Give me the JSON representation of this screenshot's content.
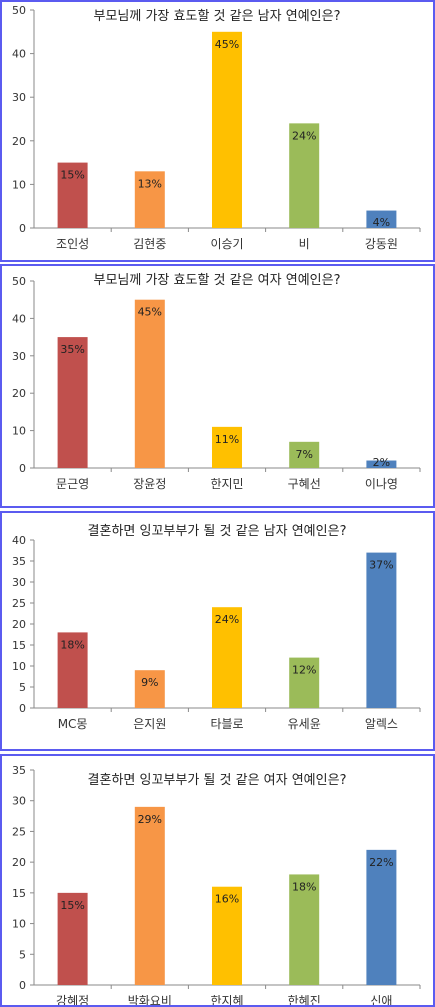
{
  "palette": [
    "#c0504d",
    "#f79646",
    "#ffc000",
    "#9bbb59",
    "#4f81bd"
  ],
  "chart_data": [
    {
      "type": "bar",
      "title": "부모님께 가장 효도할 것 같은 남자 연예인은?",
      "categories": [
        "조인성",
        "김현중",
        "이승기",
        "비",
        "강동원"
      ],
      "values": [
        15,
        13,
        45,
        24,
        4
      ],
      "data_labels": [
        "15%",
        "13%",
        "45%",
        "24%",
        "4%"
      ],
      "ylim": [
        0,
        50
      ],
      "yticks": [
        0,
        10,
        20,
        30,
        40,
        50
      ],
      "ytick_labels": [
        "0",
        "10",
        "20",
        "30",
        "40",
        "50"
      ]
    },
    {
      "type": "bar",
      "title": "부모님께 가장 효도할 것 같은 여자 연예인은?",
      "categories": [
        "문근영",
        "장윤정",
        "한지민",
        "구혜선",
        "이나영"
      ],
      "values": [
        35,
        45,
        11,
        7,
        2
      ],
      "data_labels": [
        "35%",
        "45%",
        "11%",
        "7%",
        "2%"
      ],
      "ylim": [
        0,
        50
      ],
      "yticks": [
        0,
        10,
        20,
        30,
        40,
        50
      ],
      "ytick_labels": [
        "0",
        "10",
        "20",
        "30",
        "40",
        "50"
      ]
    },
    {
      "type": "bar",
      "title": "결혼하면 잉꼬부부가 될 것 같은 남자 연예인은?",
      "categories": [
        "MC몽",
        "은지원",
        "타블로",
        "유세윤",
        "알렉스"
      ],
      "values": [
        18,
        9,
        24,
        12,
        37
      ],
      "data_labels": [
        "18%",
        "9%",
        "24%",
        "12%",
        "37%"
      ],
      "ylim": [
        0,
        40
      ],
      "yticks": [
        0,
        5,
        10,
        15,
        20,
        25,
        30,
        35,
        40
      ],
      "ytick_labels": [
        "0",
        "5",
        "10",
        "15",
        "20",
        "25",
        "30",
        "35",
        "40"
      ]
    },
    {
      "type": "bar",
      "title": "결혼하면 잉꼬부부가 될 것 같은 여자 연예인은?",
      "categories": [
        "강혜정",
        "박화요비",
        "한지혜",
        "한혜진",
        "신애"
      ],
      "values": [
        15,
        29,
        16,
        18,
        22
      ],
      "data_labels": [
        "15%",
        "29%",
        "16%",
        "18%",
        "22%"
      ],
      "ylim": [
        0,
        35
      ],
      "yticks": [
        0,
        5,
        10,
        15,
        20,
        25,
        30,
        35
      ],
      "ytick_labels": [
        "0",
        "5",
        "10",
        "15",
        "20",
        "25",
        "30",
        "35"
      ]
    }
  ]
}
